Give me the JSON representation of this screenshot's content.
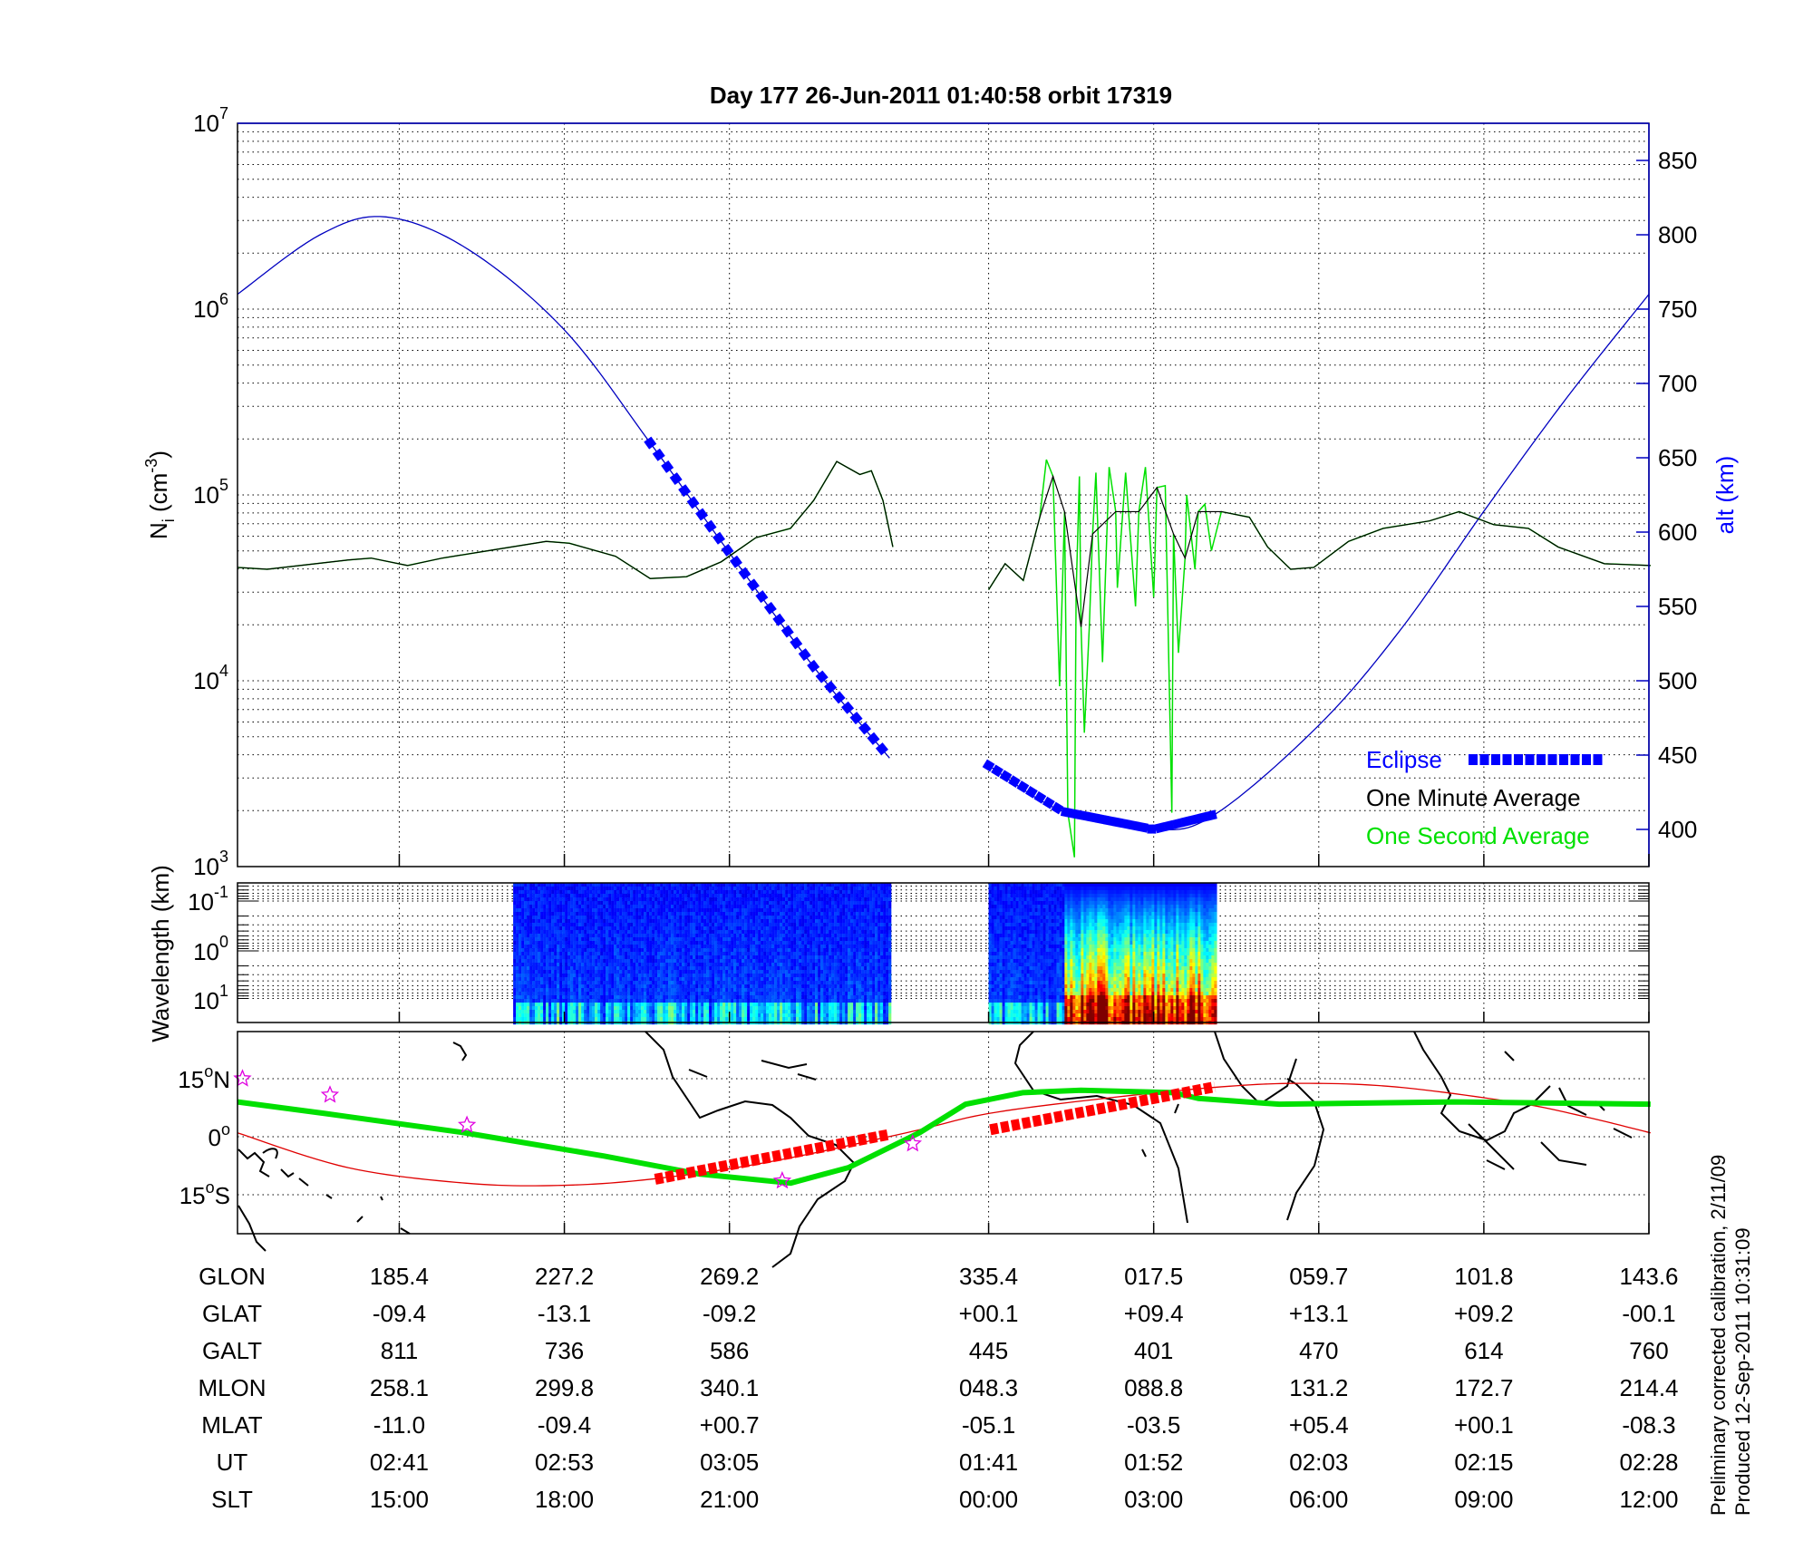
{
  "title": "Day 177  26-Jun-2011 01:40:58   orbit 17319",
  "footer": {
    "line1": "Preliminary corrected calibration, 2/11/09",
    "line2": "Produced 12-Sep-2011 10:31:09"
  },
  "colors": {
    "eclipse": "#0000ff",
    "minute": "#000000",
    "second": "#00e000",
    "altitude": "#0000c0",
    "track": "#00e000",
    "mag_equator": "#e00000",
    "map_eclipse": "#ff0000",
    "stars": "#e000e0"
  },
  "chart_data": [
    {
      "type": "line",
      "name": "density-altitude",
      "title": "Day 177  26-Jun-2011 01:40:58   orbit 17319",
      "ylabel": "N_i (cm^-3)",
      "ylabel_base": "N",
      "ylabel_sub": "i",
      "ylabel_unit": " (cm",
      "ylabel_exp": "-3",
      "ylabel_close": ")",
      "y_scale": "log",
      "ylim_log10": [
        3,
        7
      ],
      "y_ticks": [
        {
          "base": "10",
          "exp": "3",
          "v": 3
        },
        {
          "base": "10",
          "exp": "4",
          "v": 4
        },
        {
          "base": "10",
          "exp": "5",
          "v": 5
        },
        {
          "base": "10",
          "exp": "6",
          "v": 6
        },
        {
          "base": "10",
          "exp": "7",
          "v": 7
        }
      ],
      "y2label": "alt (km)",
      "y2lim": [
        375,
        875
      ],
      "y2_ticks": [
        "400",
        "450",
        "500",
        "550",
        "600",
        "650",
        "700",
        "750",
        "800",
        "850"
      ],
      "xlim": [
        0,
        8.55
      ],
      "x_ticks": [
        0.98,
        1.98,
        2.98,
        4.55,
        5.55,
        6.55,
        7.55,
        8.55
      ],
      "grid": true,
      "legend": {
        "position": "bottom-right",
        "entries": [
          "Eclipse",
          "One Minute Average",
          "One Second Average"
        ]
      },
      "altitude_segments": [
        [
          [
            0,
            760
          ],
          [
            0.5,
            800
          ],
          [
            0.9,
            812
          ],
          [
            1.4,
            790
          ],
          [
            1.98,
            736
          ],
          [
            2.5,
            660
          ],
          [
            2.98,
            586
          ],
          [
            3.5,
            508
          ],
          [
            3.95,
            448
          ]
        ],
        [
          [
            4.55,
            443
          ],
          [
            5.0,
            412
          ],
          [
            5.55,
            400
          ],
          [
            5.92,
            410
          ],
          [
            6.55,
            470
          ],
          [
            7.05,
            535
          ],
          [
            7.55,
            614
          ],
          [
            8.05,
            690
          ],
          [
            8.55,
            760
          ]
        ]
      ],
      "eclipse_ranges": [
        [
          2.5,
          3.95
        ],
        [
          4.55,
          5.92
        ]
      ],
      "one_minute_log10": [
        [
          [
            0,
            4.61
          ],
          [
            0.18,
            4.6
          ],
          [
            0.67,
            4.65
          ],
          [
            0.81,
            4.66
          ],
          [
            1.03,
            4.62
          ],
          [
            1.24,
            4.66
          ],
          [
            1.52,
            4.7
          ],
          [
            1.87,
            4.75
          ],
          [
            2.01,
            4.74
          ],
          [
            2.29,
            4.67
          ],
          [
            2.5,
            4.55
          ],
          [
            2.72,
            4.56
          ],
          [
            2.93,
            4.64
          ],
          [
            3.14,
            4.77
          ],
          [
            3.35,
            4.82
          ],
          [
            3.49,
            4.97
          ],
          [
            3.63,
            5.18
          ],
          [
            3.77,
            5.11
          ],
          [
            3.84,
            5.13
          ],
          [
            3.91,
            4.97
          ],
          [
            3.97,
            4.72
          ]
        ],
        [
          [
            4.55,
            4.49
          ],
          [
            4.65,
            4.63
          ],
          [
            4.76,
            4.54
          ],
          [
            4.86,
            4.88
          ],
          [
            4.94,
            5.1
          ],
          [
            5.01,
            4.91
          ],
          [
            5.08,
            4.47
          ],
          [
            5.11,
            4.29
          ],
          [
            5.18,
            4.79
          ],
          [
            5.32,
            4.91
          ],
          [
            5.46,
            4.91
          ],
          [
            5.57,
            5.04
          ],
          [
            5.67,
            4.79
          ],
          [
            5.74,
            4.66
          ],
          [
            5.82,
            4.91
          ],
          [
            5.96,
            4.91
          ],
          [
            6.13,
            4.88
          ],
          [
            6.24,
            4.72
          ],
          [
            6.38,
            4.6
          ],
          [
            6.52,
            4.61
          ],
          [
            6.73,
            4.75
          ],
          [
            6.94,
            4.82
          ],
          [
            7.22,
            4.86
          ],
          [
            7.4,
            4.91
          ],
          [
            7.61,
            4.84
          ],
          [
            7.82,
            4.82
          ],
          [
            8.0,
            4.72
          ],
          [
            8.28,
            4.63
          ],
          [
            8.56,
            4.62
          ]
        ]
      ],
      "one_second_spikes_log10": [
        [
          4.9,
          5.19
        ],
        [
          4.98,
          3.97
        ],
        [
          5.03,
          3.29
        ],
        [
          5.07,
          3.05
        ],
        [
          5.1,
          5.1
        ],
        [
          5.13,
          3.72
        ],
        [
          5.16,
          4.29
        ],
        [
          5.2,
          5.12
        ],
        [
          5.24,
          4.1
        ],
        [
          5.28,
          5.15
        ],
        [
          5.33,
          4.5
        ],
        [
          5.38,
          5.12
        ],
        [
          5.44,
          4.4
        ],
        [
          5.5,
          5.15
        ],
        [
          5.55,
          4.45
        ],
        [
          5.62,
          5.05
        ],
        [
          5.66,
          3.29
        ],
        [
          5.7,
          4.15
        ],
        [
          5.75,
          5.0
        ],
        [
          5.8,
          4.6
        ],
        [
          5.86,
          4.95
        ],
        [
          5.9,
          4.7
        ]
      ]
    },
    {
      "type": "heatmap",
      "name": "wavelength-spectrogram",
      "ylabel": "Wavelength (km)",
      "y_ticks": [
        {
          "base": "10",
          "exp": "-1"
        },
        {
          "base": "10",
          "exp": "0"
        },
        {
          "base": "10",
          "exp": "1"
        }
      ],
      "blocks": [
        {
          "x": [
            1.67,
            3.95
          ],
          "intensity": "low"
        },
        {
          "x": [
            4.55,
            5.01
          ],
          "intensity": "low"
        },
        {
          "x": [
            5.01,
            5.92
          ],
          "intensity": "high"
        }
      ],
      "colormap": "jet"
    },
    {
      "type": "line",
      "name": "orbit-map",
      "y_ticks": [
        {
          "label": "15",
          "suffix": "N",
          "v": 15
        },
        {
          "label": "0",
          "suffix": "",
          "v": 0
        },
        {
          "label": "15",
          "suffix": "S",
          "v": -15
        }
      ],
      "ylim": [
        -20,
        27
      ],
      "track_lat": [
        [
          0,
          9
        ],
        [
          0.53,
          6
        ],
        [
          1.38,
          1
        ],
        [
          2.22,
          -5
        ],
        [
          2.79,
          -9.6
        ],
        [
          3.35,
          -12
        ],
        [
          3.7,
          -8
        ],
        [
          4.13,
          1
        ],
        [
          4.41,
          8.4
        ],
        [
          4.76,
          11.4
        ],
        [
          5.11,
          12
        ],
        [
          5.67,
          11.4
        ],
        [
          5.82,
          9.9
        ],
        [
          6.31,
          8.4
        ],
        [
          7.37,
          9
        ],
        [
          8.56,
          8.4
        ]
      ],
      "mag_equator_lat": [
        [
          0,
          1
        ],
        [
          0.67,
          -8
        ],
        [
          1.38,
          -12
        ],
        [
          1.94,
          -12.6
        ],
        [
          2.5,
          -11
        ],
        [
          3.21,
          -6.6
        ],
        [
          4.05,
          1
        ],
        [
          4.55,
          6
        ],
        [
          5.25,
          9.9
        ],
        [
          5.96,
          12.9
        ],
        [
          6.45,
          13.8
        ],
        [
          7.01,
          12.9
        ],
        [
          7.72,
          9
        ],
        [
          8.14,
          5.4
        ],
        [
          8.56,
          1
        ]
      ],
      "eclipse_segments": [
        [
          [
            2.53,
            -11
          ],
          [
            3.95,
            0.6
          ]
        ],
        [
          [
            4.56,
            1.8
          ],
          [
            5.92,
            12.9
          ]
        ]
      ],
      "stars": [
        [
          0.03,
          15
        ],
        [
          0.56,
          10.8
        ],
        [
          1.39,
          3
        ],
        [
          3.3,
          -11.4
        ],
        [
          4.09,
          -1.8
        ]
      ]
    }
  ],
  "table": {
    "rows": [
      {
        "label": "GLON",
        "values": [
          "185.4",
          "227.2",
          "269.2",
          "335.4",
          "017.5",
          "059.7",
          "101.8",
          "143.6"
        ]
      },
      {
        "label": "GLAT",
        "values": [
          "-09.4",
          "-13.1",
          "-09.2",
          "+00.1",
          "+09.4",
          "+13.1",
          "+09.2",
          "-00.1"
        ]
      },
      {
        "label": "GALT",
        "values": [
          "811",
          "736",
          "586",
          "445",
          "401",
          "470",
          "614",
          "760"
        ]
      },
      {
        "label": "MLON",
        "values": [
          "258.1",
          "299.8",
          "340.1",
          "048.3",
          "088.8",
          "131.2",
          "172.7",
          "214.4"
        ]
      },
      {
        "label": "MLAT",
        "values": [
          "-11.0",
          "-09.4",
          "+00.7",
          "-05.1",
          "-03.5",
          "+05.4",
          "+00.1",
          "-08.3"
        ]
      },
      {
        "label": "UT",
        "values": [
          "02:41",
          "02:53",
          "03:05",
          "01:41",
          "01:52",
          "02:03",
          "02:15",
          "02:28"
        ]
      },
      {
        "label": "SLT",
        "values": [
          "15:00",
          "18:00",
          "21:00",
          "00:00",
          "03:00",
          "06:00",
          "09:00",
          "12:00"
        ]
      }
    ]
  }
}
